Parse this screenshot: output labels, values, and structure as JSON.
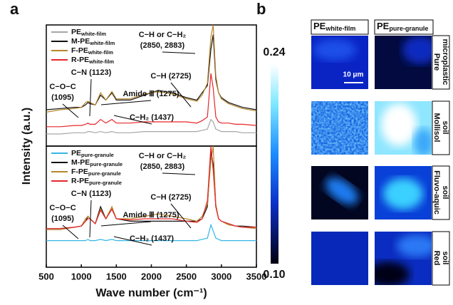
{
  "panel_a": "a",
  "panel_b": "b",
  "shared_ylabel": "Intensity (a.u.)",
  "chart_data": [
    {
      "type": "line",
      "x": [
        500,
        700,
        900,
        1000,
        1060,
        1095,
        1123,
        1200,
        1275,
        1350,
        1437,
        1500,
        1700,
        1900,
        2100,
        2300,
        2500,
        2650,
        2725,
        2800,
        2850,
        2883,
        2920,
        2960,
        3000,
        3100,
        3200,
        3300,
        3500
      ],
      "ylim": [
        0,
        100
      ],
      "series": [
        {
          "name": "PE",
          "name_sub": "white-film",
          "color": "#a6a6a6",
          "values": [
            10,
            10,
            11,
            11,
            11,
            12,
            12,
            11,
            12,
            11,
            12,
            11,
            11,
            12,
            12,
            12,
            12,
            12,
            13,
            14,
            22,
            20,
            14,
            13,
            12,
            12,
            12,
            11,
            11
          ]
        },
        {
          "name": "M-PE",
          "name_sub": "white-film",
          "color": "#111111",
          "values": [
            30,
            31,
            32,
            32,
            34,
            36,
            35,
            34,
            42,
            38,
            44,
            38,
            38,
            42,
            46,
            44,
            40,
            38,
            44,
            50,
            80,
            92,
            55,
            44,
            40,
            36,
            34,
            32,
            30
          ]
        },
        {
          "name": "F-PE",
          "name_sub": "white-film",
          "color": "#b8862b",
          "values": [
            28,
            30,
            31,
            32,
            36,
            37,
            36,
            34,
            44,
            38,
            45,
            39,
            39,
            43,
            45,
            43,
            39,
            37,
            42,
            52,
            90,
            100,
            58,
            44,
            39,
            35,
            33,
            31,
            29
          ]
        },
        {
          "name": "R-PE",
          "name_sub": "white-film",
          "color": "#e8262b",
          "values": [
            16,
            16,
            17,
            17,
            18,
            19,
            18,
            18,
            22,
            19,
            22,
            19,
            19,
            20,
            20,
            20,
            20,
            19,
            21,
            24,
            60,
            48,
            24,
            20,
            19,
            19,
            18,
            18,
            17
          ]
        }
      ],
      "annotations": [
        [
          "C−O−C",
          "(1095)"
        ],
        [
          "C−N (1123)"
        ],
        [
          "Amide Ⅲ (1275)"
        ],
        [
          "C−H₂ (1437)"
        ],
        [
          "C−H (2725)"
        ],
        [
          "C−H or C−H₂",
          "(2850, 2883)"
        ]
      ]
    },
    {
      "type": "line",
      "x": [
        500,
        700,
        900,
        1000,
        1060,
        1095,
        1123,
        1200,
        1275,
        1350,
        1437,
        1500,
        1700,
        1900,
        2100,
        2300,
        2500,
        2650,
        2725,
        2800,
        2850,
        2883,
        2920,
        2960,
        3000,
        3100,
        3200,
        3300,
        3500
      ],
      "ylim": [
        0,
        100
      ],
      "xlim": [
        500,
        3500
      ],
      "xticks": [
        500,
        1000,
        1500,
        2000,
        2500,
        3000,
        3500
      ],
      "xlabel": "Wave number (cm⁻¹)",
      "series": [
        {
          "name": "PE",
          "name_sub": "pure-granule",
          "color": "#35b6e6",
          "values": [
            22,
            22,
            22,
            22,
            22,
            23,
            22,
            22,
            23,
            22,
            23,
            22,
            22,
            22,
            22,
            22,
            22,
            22,
            23,
            24,
            35,
            30,
            24,
            23,
            22,
            22,
            22,
            22,
            22
          ]
        },
        {
          "name": "M-PE",
          "name_sub": "pure-granule",
          "color": "#111111",
          "values": [
            32,
            32,
            33,
            34,
            38,
            42,
            40,
            36,
            50,
            40,
            48,
            40,
            38,
            38,
            38,
            38,
            38,
            38,
            40,
            50,
            95,
            85,
            50,
            40,
            38,
            36,
            34,
            34,
            33
          ]
        },
        {
          "name": "F-PE",
          "name_sub": "pure-granule",
          "color": "#b8862b",
          "values": [
            31,
            31,
            33,
            34,
            40,
            42,
            40,
            36,
            48,
            40,
            50,
            40,
            40,
            42,
            44,
            42,
            40,
            38,
            42,
            52,
            88,
            100,
            52,
            40,
            38,
            35,
            34,
            33,
            32
          ]
        },
        {
          "name": "R-PE",
          "name_sub": "pure-granule",
          "color": "#e8262b",
          "values": [
            32,
            32,
            33,
            34,
            38,
            40,
            40,
            36,
            47,
            40,
            48,
            40,
            39,
            40,
            40,
            40,
            38,
            37,
            40,
            55,
            100,
            80,
            50,
            40,
            38,
            36,
            34,
            33,
            33
          ]
        }
      ],
      "annotations": [
        [
          "C−O−C",
          "(1095)"
        ],
        [
          "C−N (1123)"
        ],
        [
          "Amide Ⅲ (1275)"
        ],
        [
          "C−H₂ (1437)"
        ],
        [
          "C−H (2725)"
        ],
        [
          "C−H or C−H₂",
          "(2850, 2883)"
        ]
      ]
    }
  ],
  "heatmap": {
    "columns": [
      {
        "name": "PE",
        "name_sub": "white-film"
      },
      {
        "name": "PE",
        "name_sub": "pure-granule"
      }
    ],
    "rows": [
      [
        "Pure",
        "microplastic"
      ],
      [
        "Mollisol",
        "soil"
      ],
      [
        "Fluvo-aquic",
        "soil"
      ],
      [
        "Red",
        "soil"
      ]
    ],
    "scale_bar": "10 μm",
    "colorbar_lim": [
      0.1,
      0.24
    ],
    "colorbar_ticks": [
      {
        "value": 0.1,
        "label": "0.10"
      },
      0.24
    ]
  }
}
